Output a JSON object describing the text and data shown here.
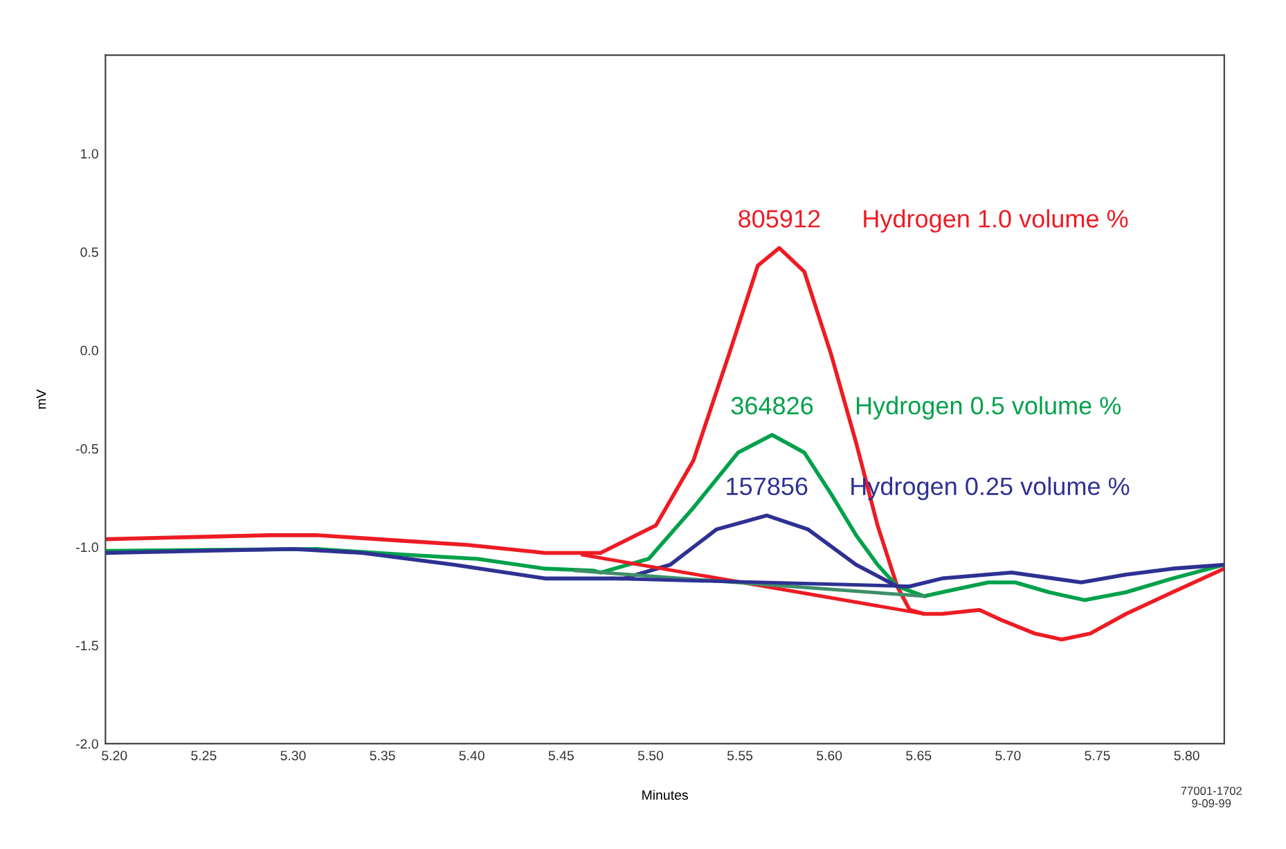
{
  "chart_data": {
    "type": "line",
    "xlabel": "Minutes",
    "ylabel": "mV",
    "xlim": [
      5.195,
      5.821
    ],
    "xticks": [
      {
        "value": 5.2,
        "label": "5.20"
      },
      {
        "value": 5.25,
        "label": "5.25"
      },
      {
        "value": 5.3,
        "label": "5.30"
      },
      {
        "value": 5.35,
        "label": "5.35"
      },
      {
        "value": 5.4,
        "label": "5.40"
      },
      {
        "value": 5.45,
        "label": "5.45"
      },
      {
        "value": 5.5,
        "label": "5.50"
      },
      {
        "value": 5.55,
        "label": "5.55"
      },
      {
        "value": 5.6,
        "label": "5.60"
      },
      {
        "value": 5.65,
        "label": "5.65"
      },
      {
        "value": 5.7,
        "label": "5.70"
      },
      {
        "value": 5.75,
        "label": "5.75"
      },
      {
        "value": 5.8,
        "label": "5.80"
      }
    ],
    "ylim": [
      -2,
      1.5
    ],
    "yticks": [
      {
        "value": -2,
        "label": "-2.0"
      },
      {
        "value": -1.5,
        "label": "-1.5"
      },
      {
        "value": -1,
        "label": "-1.0"
      },
      {
        "value": -0.5,
        "label": "-0.5"
      },
      {
        "value": 0,
        "label": "0.0"
      },
      {
        "value": 0.5,
        "label": "0.5"
      },
      {
        "value": 1,
        "label": "1.0"
      }
    ],
    "grid": false,
    "legend": false,
    "marker": "none",
    "line_style": "solid",
    "series": [
      {
        "name": "Hydrogen 1.0 volume %",
        "color": "#ed1c24",
        "x": [
          5.196,
          5.287,
          5.313,
          5.364,
          5.398,
          5.441,
          5.472,
          5.503,
          5.524,
          5.545,
          5.56,
          5.572,
          5.586,
          5.601,
          5.615,
          5.627,
          5.638,
          5.645,
          5.653,
          5.663,
          5.684,
          5.696,
          5.715,
          5.73,
          5.746,
          5.766,
          5.792,
          5.821
        ],
        "values": [
          -0.96,
          -0.94,
          -0.94,
          -0.97,
          -0.99,
          -1.03,
          -1.03,
          -0.89,
          -0.56,
          0.01,
          0.43,
          0.52,
          0.4,
          -0.02,
          -0.47,
          -0.89,
          -1.2,
          -1.32,
          -1.34,
          -1.34,
          -1.32,
          -1.37,
          -1.44,
          -1.47,
          -1.44,
          -1.34,
          -1.23,
          -1.11
        ]
      },
      {
        "name": "Hydrogen 0.5 volume %",
        "color": "#00a14b",
        "x": [
          5.196,
          5.313,
          5.364,
          5.403,
          5.441,
          5.468,
          5.472,
          5.499,
          5.524,
          5.549,
          5.568,
          5.586,
          5.601,
          5.615,
          5.627,
          5.638,
          5.653,
          5.663,
          5.689,
          5.704,
          5.723,
          5.743,
          5.766,
          5.792,
          5.821
        ],
        "values": [
          -1.02,
          -1.01,
          -1.04,
          -1.06,
          -1.11,
          -1.12,
          -1.13,
          -1.06,
          -0.8,
          -0.52,
          -0.43,
          -0.52,
          -0.73,
          -0.94,
          -1.09,
          -1.2,
          -1.25,
          -1.23,
          -1.18,
          -1.18,
          -1.23,
          -1.27,
          -1.23,
          -1.16,
          -1.09
        ]
      },
      {
        "name": "Hydrogen 0.25 volume %",
        "color": "#2e3192",
        "x": [
          5.196,
          5.3,
          5.339,
          5.39,
          5.441,
          5.485,
          5.511,
          5.537,
          5.565,
          5.588,
          5.615,
          5.638,
          5.645,
          5.663,
          5.702,
          5.741,
          5.766,
          5.792,
          5.821
        ],
        "values": [
          -1.03,
          -1.01,
          -1.03,
          -1.09,
          -1.16,
          -1.16,
          -1.09,
          -0.91,
          -0.84,
          -0.91,
          -1.09,
          -1.2,
          -1.2,
          -1.16,
          -1.13,
          -1.18,
          -1.14,
          -1.11,
          -1.09
        ]
      },
      {
        "color": "#ed1c24",
        "x": [
          5.462,
          5.653
        ],
        "values": [
          -1.04,
          -1.34
        ]
      },
      {
        "color": "#3f8f6a",
        "x": [
          5.458,
          5.653
        ],
        "values": [
          -1.12,
          -1.25
        ]
      },
      {
        "color": "#2e3192",
        "x": [
          5.478,
          5.645
        ],
        "values": [
          -1.16,
          -1.2
        ]
      }
    ],
    "annotations": [
      {
        "text": "805912",
        "x": 5.572,
        "y": 0.52
      },
      {
        "text": "364826",
        "x": 5.568,
        "y": -0.43
      },
      {
        "text": "157856",
        "x": 5.565,
        "y": -0.84
      },
      "77001-1702\n9-09-99"
    ]
  }
}
